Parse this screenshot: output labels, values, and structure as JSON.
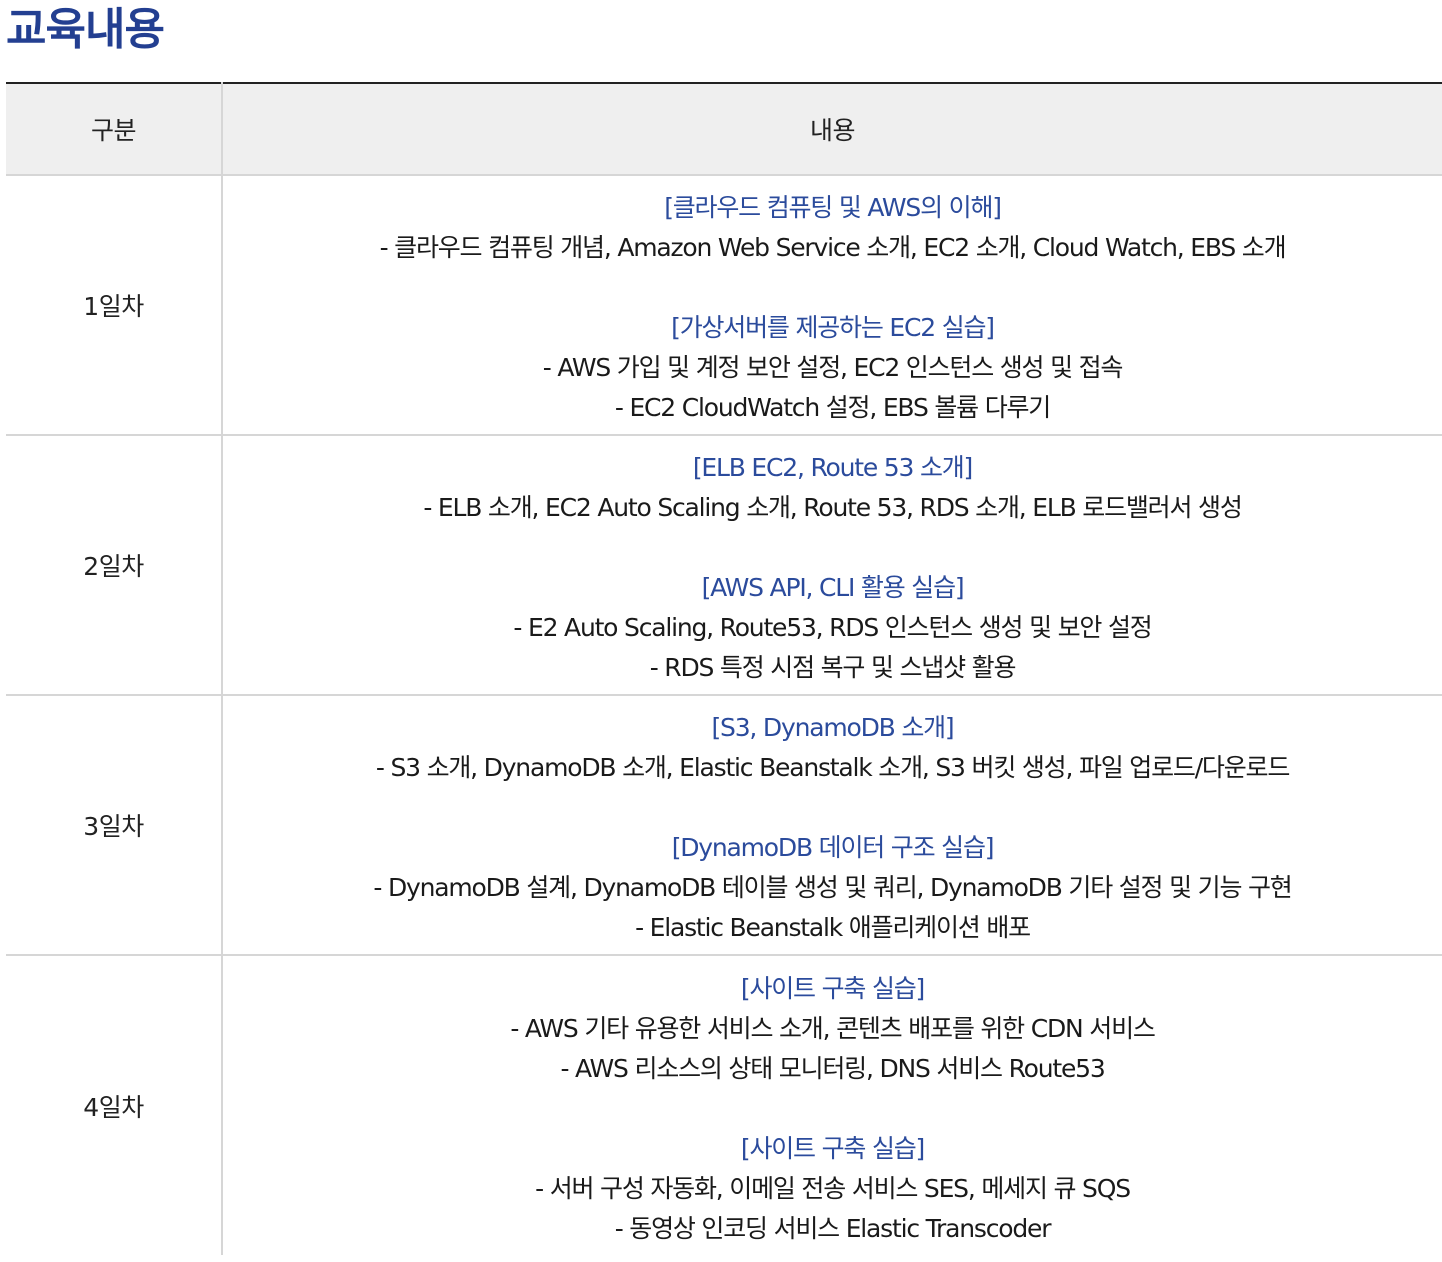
{
  "page": {
    "title": "교육내용"
  },
  "table": {
    "headers": {
      "day": "구분",
      "content": "내용"
    },
    "rows": [
      {
        "day": "1일차",
        "sections": [
          {
            "heading": "[클라우드 컴퓨팅 및 AWS의 이해]",
            "lines": [
              "- 클라우드 컴퓨팅 개념, Amazon Web Service 소개, EC2 소개, Cloud Watch, EBS 소개"
            ]
          },
          {
            "heading": "[가상서버를 제공하는 EC2 실습]",
            "lines": [
              "- AWS 가입 및 계정 보안 설정, EC2 인스턴스 생성 및 접속",
              "- EC2 CloudWatch 설정, EBS 볼륨 다루기"
            ]
          }
        ]
      },
      {
        "day": "2일차",
        "sections": [
          {
            "heading": "[ELB EC2, Route 53 소개]",
            "lines": [
              "- ELB 소개, EC2 Auto Scaling 소개, Route 53, RDS 소개, ELB 로드밸러서 생성"
            ]
          },
          {
            "heading": "[AWS API, CLI 활용 실습]",
            "lines": [
              "- E2 Auto Scaling, Route53, RDS 인스턴스 생성 및 보안 설정",
              "- RDS 특정 시점 복구 및 스냅샷 활용"
            ]
          }
        ]
      },
      {
        "day": "3일차",
        "sections": [
          {
            "heading": "[S3, DynamoDB 소개]",
            "lines": [
              "- S3 소개, DynamoDB 소개, Elastic Beanstalk 소개, S3 버킷 생성, 파일 업로드/다운로드"
            ]
          },
          {
            "heading": "[DynamoDB 데이터 구조 실습]",
            "lines": [
              "- DynamoDB 설계, DynamoDB 테이블 생성 및 쿼리, DynamoDB 기타 설정 및 기능 구현",
              "- Elastic Beanstalk 애플리케이션 배포"
            ]
          }
        ]
      },
      {
        "day": "4일차",
        "sections": [
          {
            "heading": "[사이트 구축 실습]",
            "lines": [
              "- AWS 기타 유용한 서비스 소개, 콘텐츠 배포를 위한 CDN 서비스",
              "- AWS 리소스의 상태 모니터링, DNS 서비스 Route53"
            ]
          },
          {
            "heading": "[사이트 구축 실습]",
            "lines": [
              "- 서버 구성 자동화, 이메일 전송 서비스 SES, 메세지 큐 SQS",
              "- 동영상 인코딩 서비스 Elastic Transcoder"
            ]
          }
        ]
      }
    ]
  },
  "colors": {
    "title": "#233f91",
    "section_heading": "#2b4b9c",
    "header_background": "#efefef",
    "table_top_border": "#222222",
    "cell_border": "#d6d6d6",
    "body_text": "#1a1a1a"
  }
}
